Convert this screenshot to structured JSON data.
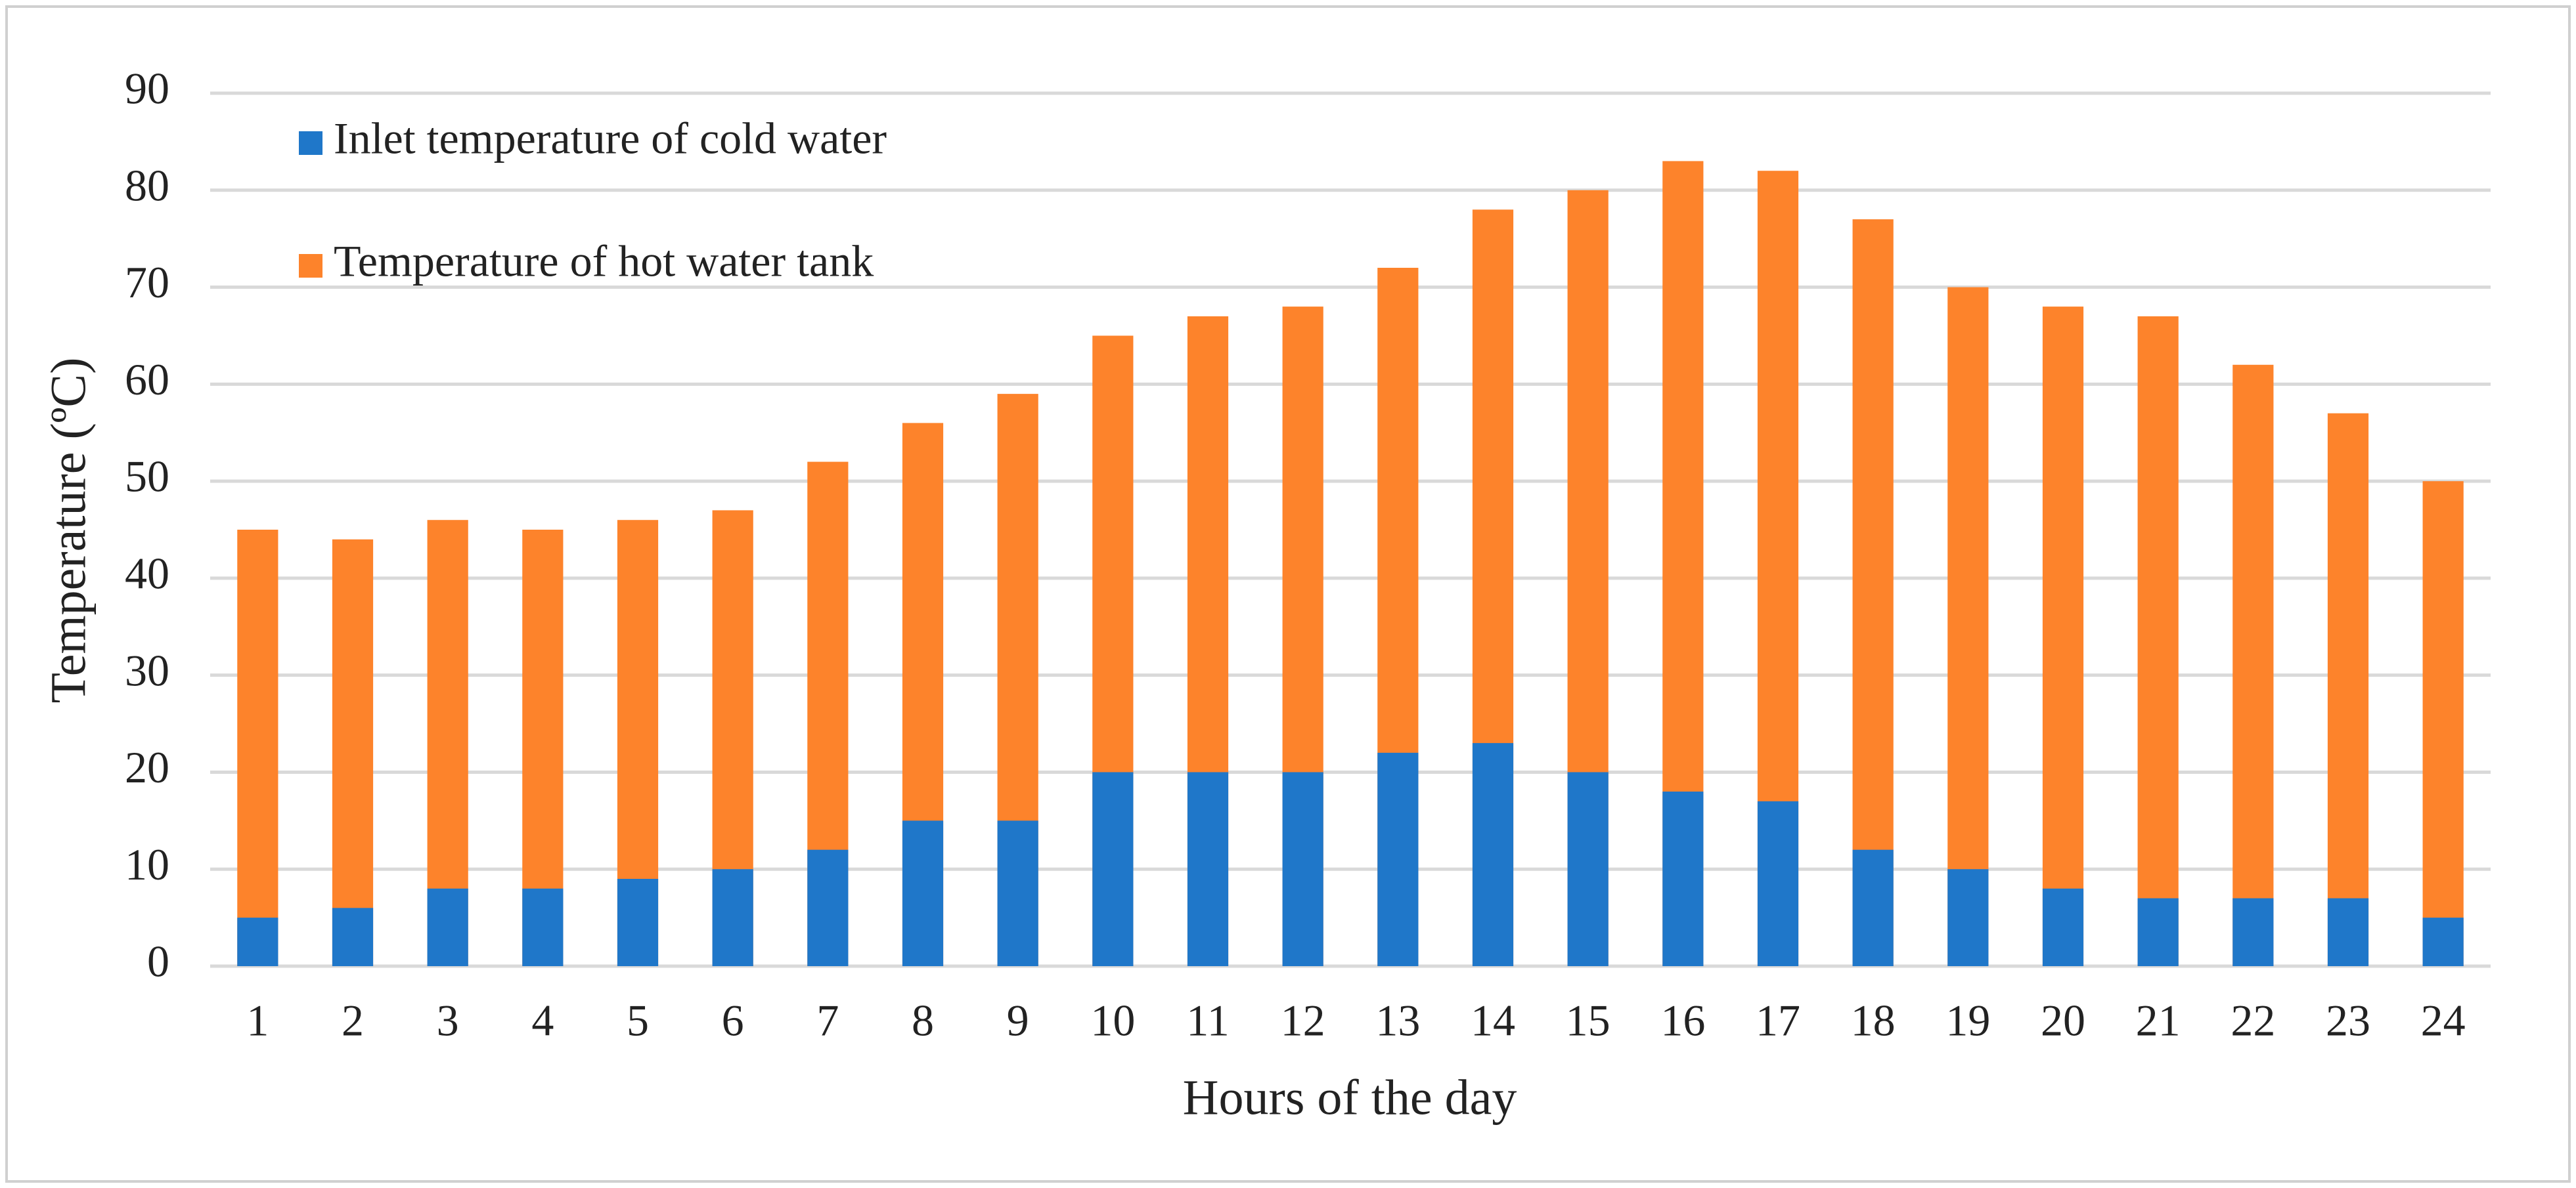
{
  "chart_data": {
    "type": "bar",
    "overlap": true,
    "x_label": "Hours of the day",
    "y_label": "Temperature (ºC)",
    "categories": [
      "1",
      "2",
      "3",
      "4",
      "5",
      "6",
      "7",
      "8",
      "9",
      "10",
      "11",
      "12",
      "13",
      "14",
      "15",
      "16",
      "17",
      "18",
      "19",
      "20",
      "21",
      "22",
      "23",
      "24"
    ],
    "series": [
      {
        "name": "Inlet temperature of cold water",
        "color": "#1f77c9",
        "values": [
          5,
          6,
          8,
          8,
          9,
          10,
          12,
          15,
          15,
          20,
          20,
          20,
          22,
          23,
          20,
          18,
          17,
          12,
          10,
          8,
          7,
          7,
          7,
          5
        ]
      },
      {
        "name": "Temperature of hot water tank",
        "color": "#fd832b",
        "values": [
          45,
          44,
          46,
          45,
          46,
          47,
          52,
          56,
          59,
          65,
          67,
          68,
          72,
          78,
          80,
          83,
          82,
          77,
          70,
          68,
          67,
          62,
          57,
          50
        ]
      }
    ],
    "ylim": [
      0,
      90
    ],
    "yticks": [
      0,
      10,
      20,
      30,
      40,
      50,
      60,
      70,
      80,
      90
    ],
    "grid": true,
    "legend": "top-left"
  }
}
